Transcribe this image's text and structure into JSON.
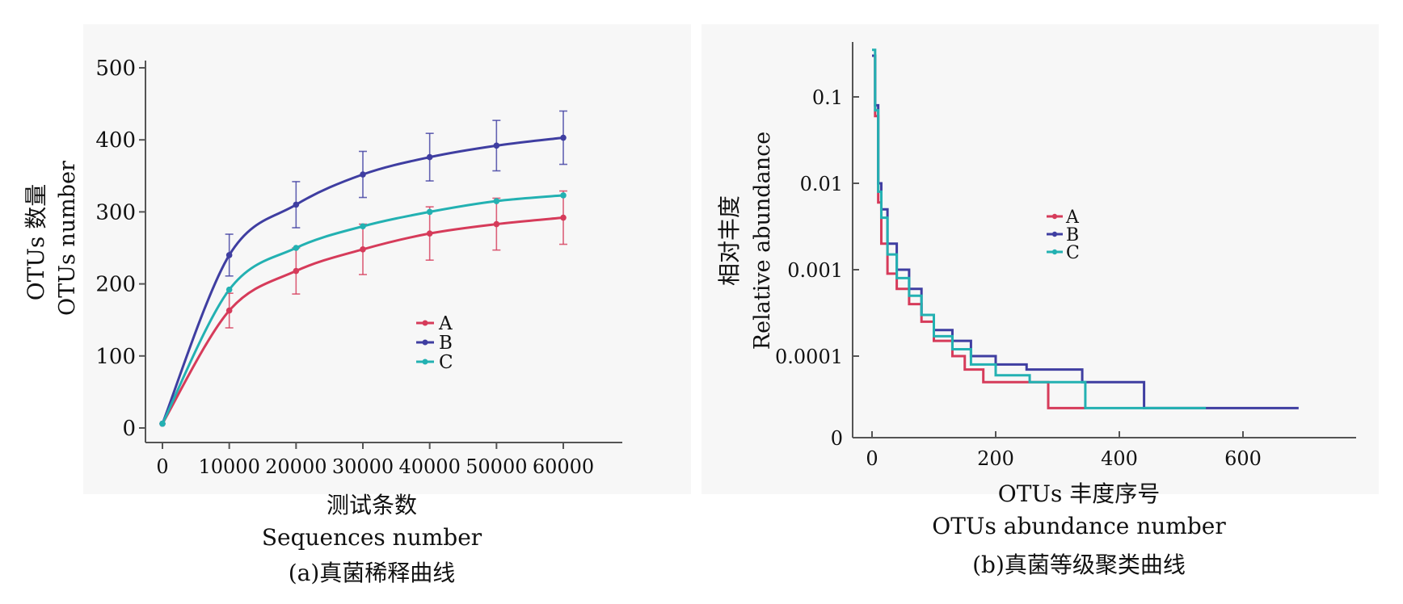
{
  "chart_data": [
    {
      "type": "line",
      "panel": "a",
      "x": [
        0,
        10000,
        20000,
        30000,
        40000,
        50000,
        60000
      ],
      "series": [
        {
          "name": "A",
          "color": "#d63b5a",
          "values": [
            6,
            163,
            218,
            248,
            270,
            283,
            292
          ],
          "errors": [
            0,
            24,
            32,
            35,
            37,
            36,
            37
          ]
        },
        {
          "name": "B",
          "color": "#3f3ea1",
          "values": [
            6,
            240,
            310,
            352,
            376,
            392,
            403
          ],
          "errors": [
            0,
            29,
            32,
            32,
            33,
            35,
            37
          ]
        },
        {
          "name": "C",
          "color": "#23b1b2",
          "values": [
            6,
            192,
            250,
            280,
            300,
            315,
            323
          ],
          "errors": [
            0,
            0,
            0,
            0,
            0,
            0,
            0
          ]
        }
      ],
      "xticks": [
        "0",
        "10000",
        "20000",
        "30000",
        "40000",
        "50000",
        "60000"
      ],
      "yticks": [
        "0",
        "100",
        "200",
        "300",
        "400",
        "500"
      ],
      "xlim": [
        -2000,
        68000
      ],
      "ylim": [
        -15,
        510
      ],
      "xlabel_cn": "测试条数",
      "xlabel_en": "Sequences number",
      "ylabel_cn": "OTUs 数量",
      "ylabel_en": "OTUs number",
      "caption": "(a)真菌稀释曲线",
      "legend_placement": "center-right",
      "grid": false
    },
    {
      "type": "line",
      "panel": "b",
      "scale_y": "log",
      "series": [
        {
          "name": "A",
          "color": "#d63b5a",
          "steps": [
            [
              0,
              0.3
            ],
            [
              5,
              0.06
            ],
            [
              10,
              0.006
            ],
            [
              15,
              0.002
            ],
            [
              25,
              0.0009
            ],
            [
              40,
              0.0006
            ],
            [
              60,
              0.0004
            ],
            [
              80,
              0.00025
            ],
            [
              100,
              0.00015
            ],
            [
              130,
              0.0001
            ],
            [
              150,
              7e-05
            ],
            [
              180,
              5e-05
            ],
            [
              230,
              5e-05
            ],
            [
              285,
              5e-05
            ],
            [
              285,
              2.5e-05
            ],
            [
              345,
              2.5e-05
            ]
          ]
        },
        {
          "name": "B",
          "color": "#3f3ea1",
          "steps": [
            [
              0,
              0.3
            ],
            [
              5,
              0.08
            ],
            [
              10,
              0.01
            ],
            [
              15,
              0.005
            ],
            [
              25,
              0.002
            ],
            [
              40,
              0.001
            ],
            [
              60,
              0.0006
            ],
            [
              80,
              0.0003
            ],
            [
              100,
              0.0002
            ],
            [
              130,
              0.00015
            ],
            [
              160,
              0.0001
            ],
            [
              200,
              8e-05
            ],
            [
              250,
              7e-05
            ],
            [
              340,
              7e-05
            ],
            [
              340,
              5e-05
            ],
            [
              440,
              5e-05
            ],
            [
              440,
              2.5e-05
            ],
            [
              690,
              2.5e-05
            ]
          ]
        },
        {
          "name": "C",
          "color": "#23b1b2",
          "steps": [
            [
              0,
              0.35
            ],
            [
              5,
              0.07
            ],
            [
              10,
              0.008
            ],
            [
              15,
              0.004
            ],
            [
              25,
              0.0015
            ],
            [
              40,
              0.0008
            ],
            [
              60,
              0.0005
            ],
            [
              80,
              0.0003
            ],
            [
              100,
              0.00017
            ],
            [
              130,
              0.00012
            ],
            [
              160,
              8e-05
            ],
            [
              200,
              6e-05
            ],
            [
              255,
              6e-05
            ],
            [
              255,
              5e-05
            ],
            [
              345,
              5e-05
            ],
            [
              345,
              2.5e-05
            ],
            [
              540,
              2.5e-05
            ]
          ]
        }
      ],
      "xticks": [
        "0",
        "200",
        "400",
        "600"
      ],
      "yticks": [
        "0",
        "0.0001",
        "0.001",
        "0.01",
        "0.1"
      ],
      "xlim": [
        -20,
        790
      ],
      "xlabel_cn": "OTUs 丰度序号",
      "xlabel_en": "OTUs abundance number",
      "ylabel_cn": "相对丰度",
      "ylabel_en": "Relative abundance",
      "caption": "(b)真菌等级聚类曲线",
      "legend_placement": "center",
      "grid": false
    }
  ]
}
